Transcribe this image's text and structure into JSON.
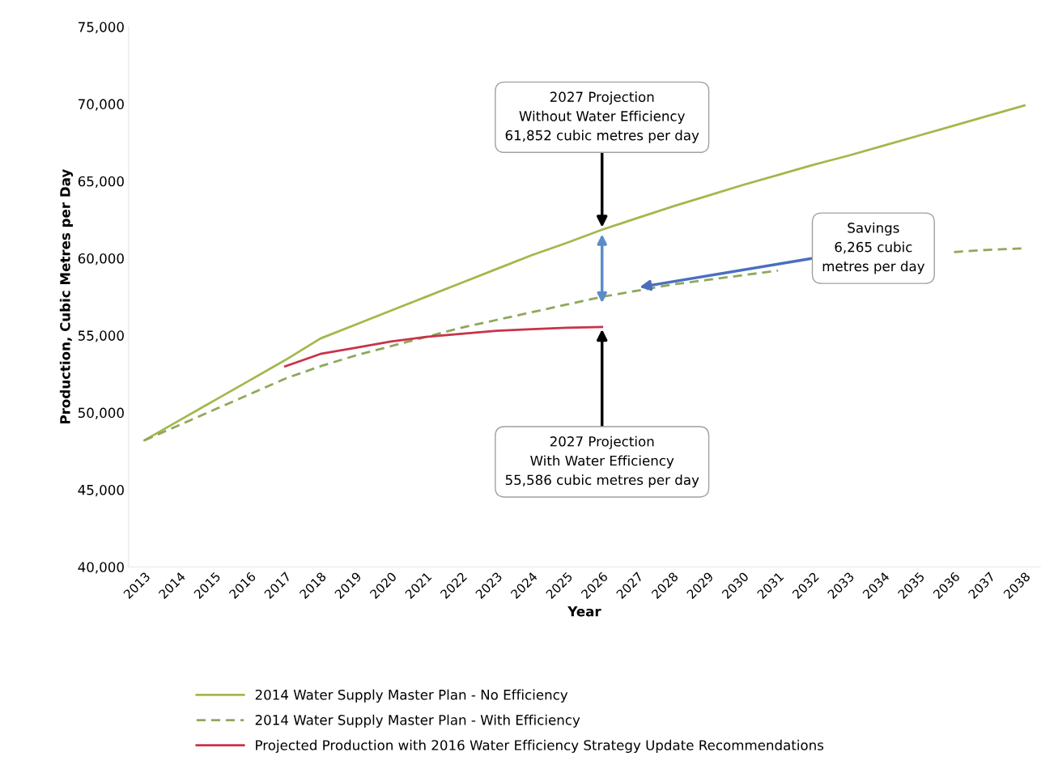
{
  "chart_data": {
    "type": "line",
    "xlabel": "Year",
    "ylabel": "Production, Cubic Metres per Day",
    "categories": [
      "2013",
      "2014",
      "2015",
      "2016",
      "2017",
      "2018",
      "2019",
      "2020",
      "2021",
      "2022",
      "2023",
      "2024",
      "2025",
      "2026",
      "2027",
      "2028",
      "2029",
      "2030",
      "2031",
      "2032",
      "2033",
      "2034",
      "2035",
      "2036",
      "2037",
      "2038"
    ],
    "series": [
      {
        "name": "2014 Water Supply Master Plan - No Efficiency",
        "color": "#a3b84c",
        "line_style": "solid",
        "values": [
          48200,
          49500,
          50800,
          52100,
          53400,
          54800,
          55700,
          56600,
          57500,
          58400,
          59300,
          60200,
          61000,
          61850,
          62600,
          63350,
          64050,
          64750,
          65400,
          66050,
          66650,
          67300,
          67950,
          68600,
          69250,
          69900
        ]
      },
      {
        "name": "2014 Water Supply Master Plan - With Efficiency",
        "color": "#8fa85a",
        "line_style": "dashed",
        "values": [
          48200,
          49200,
          50200,
          51200,
          52200,
          53000,
          53700,
          54300,
          54900,
          55500,
          56000,
          56500,
          57000,
          57500,
          57900,
          58300,
          58600,
          58900,
          59200,
          null,
          null,
          null,
          null,
          60400,
          60550,
          60650
        ]
      },
      {
        "name": "Projected Production with 2016 Water Efficiency Strategy Update Recommendations",
        "color": "#c8334a",
        "line_style": "solid",
        "values": [
          null,
          null,
          null,
          null,
          53000,
          53800,
          54200,
          54600,
          54900,
          55100,
          55300,
          55400,
          55500,
          55550,
          null,
          null,
          null,
          null,
          null,
          null,
          null,
          null,
          null,
          null,
          null,
          null
        ]
      }
    ],
    "ylim": [
      40000,
      75000
    ],
    "yticks": [
      {
        "value": 40000,
        "label": "40,000"
      },
      {
        "value": 45000,
        "label": "45,000"
      },
      {
        "value": 50000,
        "label": "50,000"
      },
      {
        "value": 55000,
        "label": "55,000"
      },
      {
        "value": 60000,
        "label": "60,000"
      },
      {
        "value": 65000,
        "label": "65,000"
      },
      {
        "value": 70000,
        "label": "70,000"
      },
      {
        "value": 75000,
        "label": "75,000"
      }
    ],
    "grid": false,
    "legend": "bottom",
    "marker": "none",
    "annotations": [
      {
        "text": "2027 Projection\nWithout Water Efficiency\n61,852 cubic metres per day",
        "x": "2026",
        "y": 61850
      },
      {
        "text": "Savings\n6,265 cubic\nmetres per day",
        "x": "2027",
        "y": 58100
      },
      {
        "text": "2027 Projection\nWith Water Efficiency\n55,586 cubic metres per day",
        "x": "2026",
        "y": 55550
      }
    ]
  }
}
